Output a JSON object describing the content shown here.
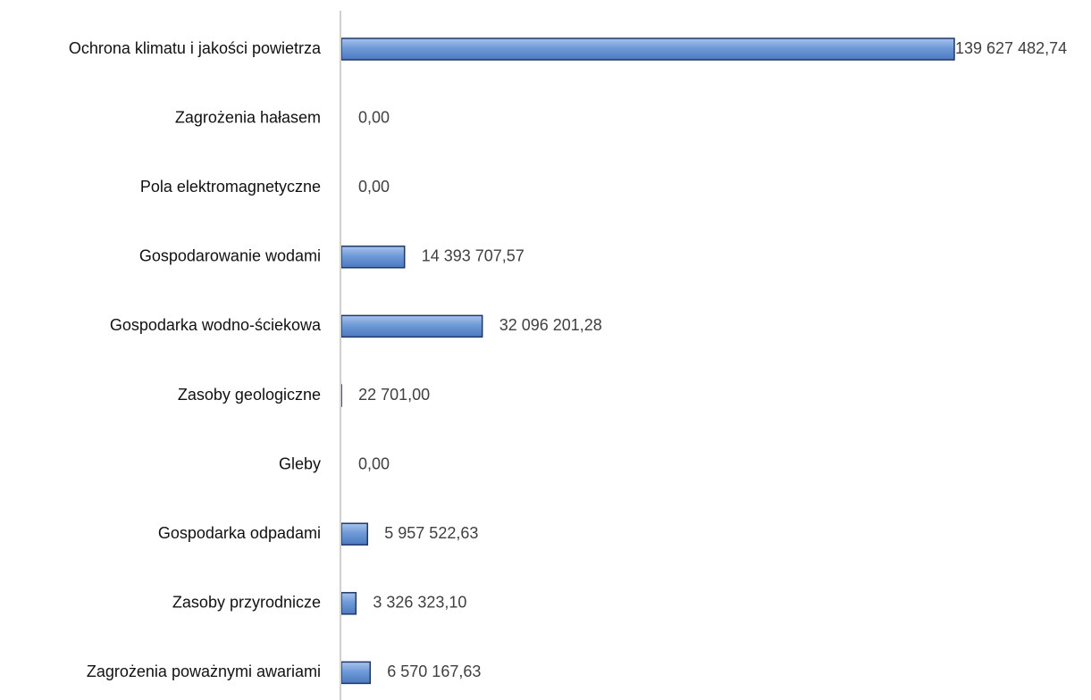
{
  "chart_data": {
    "type": "bar",
    "orientation": "horizontal",
    "title": "",
    "xlabel": "",
    "ylabel": "",
    "grid": false,
    "legend": "none",
    "bar_color": "#5b8bd0",
    "bar_edge_color": "#1f3864",
    "axis_color": "#d0d0d0",
    "xlim": [
      0,
      139627482.74
    ],
    "categories": [
      "Ochrona klimatu i jakości powietrza",
      "Zagrożenia hałasem",
      "Pola elektromagnetyczne",
      "Gospodarowanie wodami",
      "Gospodarka wodno-ściekowa",
      "Zasoby geologiczne",
      "Gleby",
      "Gospodarka odpadami",
      "Zasoby przyrodnicze",
      "Zagrożenia poważnymi awariami"
    ],
    "values": [
      139627482.74,
      0.0,
      0.0,
      14393707.57,
      32096201.28,
      22701.0,
      0.0,
      5957522.63,
      3326323.1,
      6570167.63
    ],
    "value_labels": [
      "139 627 482,74",
      "0,00",
      "0,00",
      "14 393 707,57",
      "32 096 201,28",
      "22 701,00",
      "0,00",
      "5 957 522,63",
      "3 326 323,10",
      "6 570 167,63"
    ]
  }
}
